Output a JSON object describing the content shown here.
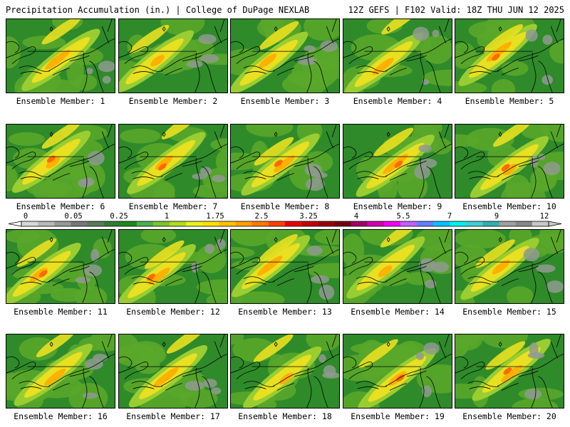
{
  "header": {
    "left": "Precipitation Accumulation (in.) | College of DuPage NEXLAB",
    "right": "12Z GEFS | F102 Valid: 18Z THU JUN 12 2025"
  },
  "colorbar": {
    "tick_labels": [
      "0",
      "0.05",
      "0.25",
      "1",
      "1.75",
      "2.5",
      "3.25",
      "4",
      "5.5",
      "7",
      "9",
      "12"
    ],
    "colors": [
      "#d8d8d8",
      "#b8b8b8",
      "#989898",
      "#787878",
      "#5a7a5a",
      "#2e7d32",
      "#1b8a1b",
      "#4caf50",
      "#7cc42a",
      "#b0dc1e",
      "#e8f020",
      "#ffe000",
      "#ffc000",
      "#ffa000",
      "#ff7a00",
      "#ff4000",
      "#e80000",
      "#c00000",
      "#9a0000",
      "#700010",
      "#a0006a",
      "#d000b0",
      "#f000f0",
      "#c060ff",
      "#6080ff",
      "#00c0ff",
      "#00f0f0",
      "#40d0d0",
      "#30b0b0",
      "#a0a0a0",
      "#888888",
      "#c8c8c8"
    ]
  },
  "panels": [
    {
      "label": "Ensemble Member: 1"
    },
    {
      "label": "Ensemble Member: 2"
    },
    {
      "label": "Ensemble Member: 3"
    },
    {
      "label": "Ensemble Member: 4"
    },
    {
      "label": "Ensemble Member: 5"
    },
    {
      "label": "Ensemble Member: 6"
    },
    {
      "label": "Ensemble Member: 7"
    },
    {
      "label": "Ensemble Member: 8"
    },
    {
      "label": "Ensemble Member: 9"
    },
    {
      "label": "Ensemble Member: 10"
    },
    {
      "label": "Ensemble Member: 11"
    },
    {
      "label": "Ensemble Member: 12"
    },
    {
      "label": "Ensemble Member: 13"
    },
    {
      "label": "Ensemble Member: 14"
    },
    {
      "label": "Ensemble Member: 15"
    },
    {
      "label": "Ensemble Member: 16"
    },
    {
      "label": "Ensemble Member: 17"
    },
    {
      "label": "Ensemble Member: 18"
    },
    {
      "label": "Ensemble Member: 19"
    },
    {
      "label": "Ensemble Member: 20"
    }
  ]
}
